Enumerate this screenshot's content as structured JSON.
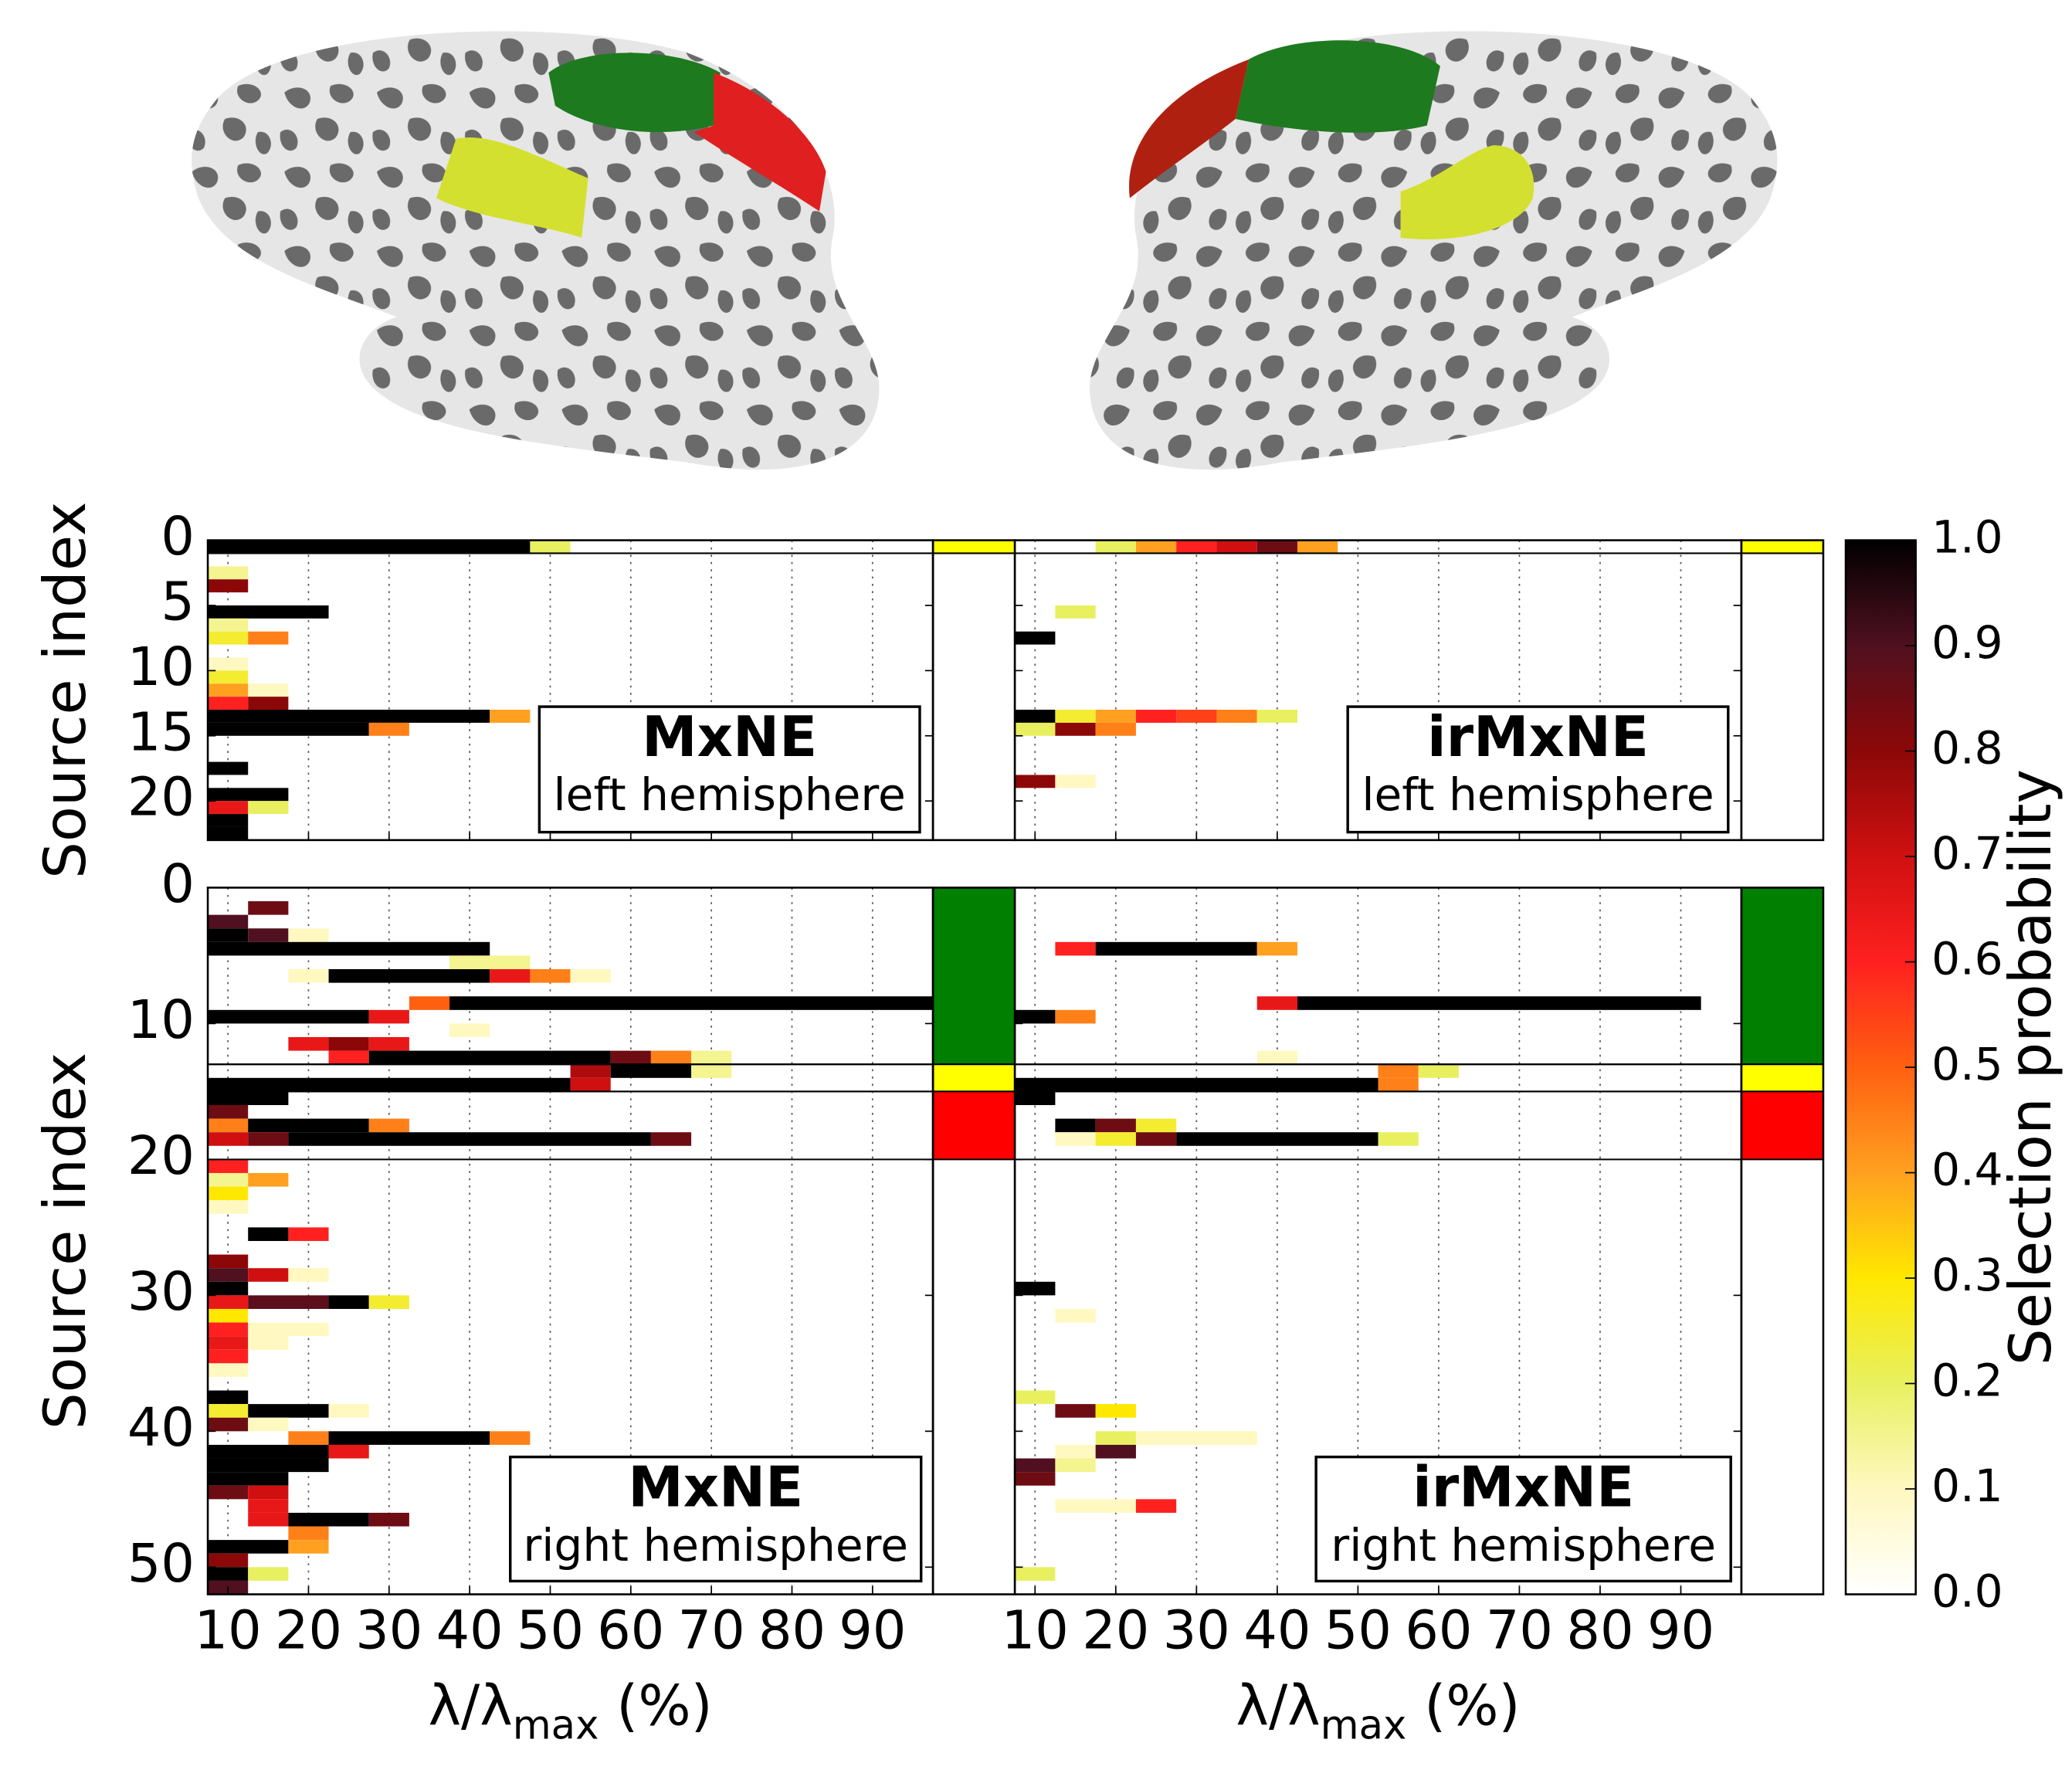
{
  "chart_data": [
    {
      "type": "heatmap",
      "title": "MxNE",
      "subtitle": "left hemisphere",
      "ylabel": "Source index",
      "xlim": [
        7.5,
        97.5
      ],
      "ylim": [
        0,
        23
      ],
      "xticks": [
        10,
        20,
        30,
        40,
        50,
        60,
        70,
        80,
        90
      ],
      "xtick_labels": false,
      "yticks": [
        0,
        5,
        10,
        15,
        20
      ],
      "ytick_labels": true,
      "grid": true,
      "roi_bands": [
        {
          "start": 0,
          "end": 1,
          "color": "#ffff00"
        }
      ],
      "cells": [
        [
          0,
          7.5,
          47.5,
          1.0
        ],
        [
          0,
          47.5,
          52.5,
          0.2
        ],
        [
          2,
          7.5,
          12.5,
          0.15
        ],
        [
          3,
          7.5,
          12.5,
          0.8
        ],
        [
          5,
          7.5,
          22.5,
          1.0
        ],
        [
          6,
          7.5,
          12.5,
          0.15
        ],
        [
          7,
          7.5,
          12.5,
          0.25
        ],
        [
          7,
          12.5,
          17.5,
          0.45
        ],
        [
          9,
          7.5,
          12.5,
          0.1
        ],
        [
          10,
          7.5,
          12.5,
          0.25
        ],
        [
          11,
          7.5,
          12.5,
          0.4
        ],
        [
          11,
          12.5,
          17.5,
          0.1
        ],
        [
          12,
          7.5,
          12.5,
          0.6
        ],
        [
          12,
          12.5,
          17.5,
          0.8
        ],
        [
          13,
          7.5,
          42.5,
          1.0
        ],
        [
          13,
          42.5,
          47.5,
          0.4
        ],
        [
          14,
          7.5,
          27.5,
          1.0
        ],
        [
          14,
          27.5,
          32.5,
          0.45
        ],
        [
          17,
          7.5,
          12.5,
          1.0
        ],
        [
          19,
          7.5,
          17.5,
          1.0
        ],
        [
          20,
          7.5,
          12.5,
          0.65
        ],
        [
          20,
          12.5,
          17.5,
          0.2
        ],
        [
          21,
          7.5,
          12.5,
          1.0
        ],
        [
          22,
          7.5,
          12.5,
          1.0
        ]
      ]
    },
    {
      "type": "heatmap",
      "title": "irMxNE",
      "subtitle": "left hemisphere",
      "xlim": [
        7.5,
        97.5
      ],
      "ylim": [
        0,
        23
      ],
      "xticks": [
        10,
        20,
        30,
        40,
        50,
        60,
        70,
        80,
        90
      ],
      "xtick_labels": false,
      "yticks": [
        0,
        5,
        10,
        15,
        20
      ],
      "ytick_labels": false,
      "grid": true,
      "roi_bands": [
        {
          "start": 0,
          "end": 1,
          "color": "#ffff00"
        }
      ],
      "cells": [
        [
          0,
          17.5,
          22.5,
          0.2
        ],
        [
          0,
          22.5,
          27.5,
          0.4
        ],
        [
          0,
          27.5,
          32.5,
          0.6
        ],
        [
          0,
          32.5,
          37.5,
          0.7
        ],
        [
          0,
          37.5,
          42.5,
          0.85
        ],
        [
          0,
          42.5,
          47.5,
          0.4
        ],
        [
          5,
          12.5,
          17.5,
          0.2
        ],
        [
          7,
          7.5,
          12.5,
          1.0
        ],
        [
          13,
          7.5,
          12.5,
          1.0
        ],
        [
          13,
          12.5,
          17.5,
          0.25
        ],
        [
          13,
          17.5,
          22.5,
          0.4
        ],
        [
          13,
          22.5,
          27.5,
          0.6
        ],
        [
          13,
          27.5,
          32.5,
          0.55
        ],
        [
          13,
          32.5,
          37.5,
          0.45
        ],
        [
          13,
          37.5,
          42.5,
          0.2
        ],
        [
          14,
          7.5,
          12.5,
          0.2
        ],
        [
          14,
          12.5,
          17.5,
          0.8
        ],
        [
          14,
          17.5,
          22.5,
          0.45
        ],
        [
          18,
          7.5,
          12.5,
          0.8
        ],
        [
          18,
          12.5,
          17.5,
          0.1
        ]
      ]
    },
    {
      "type": "heatmap",
      "title": "MxNE",
      "subtitle": "right hemisphere",
      "ylabel": "Source index",
      "xlabel": [
        "λ/λ",
        "max",
        " (%)"
      ],
      "xlim": [
        7.5,
        97.5
      ],
      "ylim": [
        0,
        52
      ],
      "xticks": [
        10,
        20,
        30,
        40,
        50,
        60,
        70,
        80,
        90
      ],
      "xtick_labels": true,
      "yticks": [
        0,
        10,
        20,
        30,
        40,
        50
      ],
      "ytick_labels": true,
      "grid": true,
      "roi_bands": [
        {
          "start": 0,
          "end": 13,
          "color": "#007f00"
        },
        {
          "start": 13,
          "end": 15,
          "color": "#ffff00"
        },
        {
          "start": 15,
          "end": 20,
          "color": "#ff0000"
        }
      ],
      "cells": [
        [
          1,
          12.5,
          17.5,
          0.85
        ],
        [
          2,
          7.5,
          12.5,
          0.9
        ],
        [
          3,
          7.5,
          12.5,
          1.0
        ],
        [
          3,
          12.5,
          17.5,
          0.9
        ],
        [
          3,
          17.5,
          22.5,
          0.1
        ],
        [
          4,
          7.5,
          42.5,
          1.0
        ],
        [
          5,
          37.5,
          47.5,
          0.15
        ],
        [
          6,
          17.5,
          22.5,
          0.1
        ],
        [
          6,
          22.5,
          42.5,
          1.0
        ],
        [
          6,
          42.5,
          47.5,
          0.65
        ],
        [
          6,
          47.5,
          52.5,
          0.45
        ],
        [
          6,
          52.5,
          57.5,
          0.1
        ],
        [
          8,
          32.5,
          37.5,
          0.5
        ],
        [
          8,
          37.5,
          97.5,
          1.0
        ],
        [
          9,
          7.5,
          27.5,
          1.0
        ],
        [
          9,
          27.5,
          32.5,
          0.65
        ],
        [
          10,
          37.5,
          42.5,
          0.1
        ],
        [
          11,
          17.5,
          22.5,
          0.65
        ],
        [
          11,
          22.5,
          27.5,
          0.8
        ],
        [
          11,
          27.5,
          32.5,
          0.65
        ],
        [
          12,
          22.5,
          27.5,
          0.6
        ],
        [
          12,
          27.5,
          57.5,
          1.0
        ],
        [
          12,
          57.5,
          62.5,
          0.85
        ],
        [
          12,
          62.5,
          67.5,
          0.45
        ],
        [
          12,
          67.5,
          72.5,
          0.15
        ],
        [
          13,
          52.5,
          57.5,
          0.75
        ],
        [
          13,
          57.5,
          67.5,
          1.0
        ],
        [
          13,
          67.5,
          72.5,
          0.15
        ],
        [
          14,
          7.5,
          52.5,
          1.0
        ],
        [
          14,
          52.5,
          57.5,
          0.7
        ],
        [
          15,
          7.5,
          17.5,
          1.0
        ],
        [
          16,
          7.5,
          12.5,
          0.85
        ],
        [
          17,
          7.5,
          12.5,
          0.45
        ],
        [
          17,
          12.5,
          27.5,
          1.0
        ],
        [
          17,
          27.5,
          32.5,
          0.45
        ],
        [
          18,
          7.5,
          12.5,
          0.7
        ],
        [
          18,
          12.5,
          17.5,
          0.85
        ],
        [
          18,
          17.5,
          62.5,
          1.0
        ],
        [
          18,
          62.5,
          67.5,
          0.85
        ],
        [
          20,
          7.5,
          12.5,
          0.6
        ],
        [
          21,
          7.5,
          12.5,
          0.15
        ],
        [
          21,
          12.5,
          17.5,
          0.4
        ],
        [
          22,
          7.5,
          12.5,
          0.3
        ],
        [
          23,
          7.5,
          12.5,
          0.1
        ],
        [
          25,
          12.5,
          17.5,
          1.0
        ],
        [
          25,
          17.5,
          22.5,
          0.6
        ],
        [
          27,
          7.5,
          12.5,
          0.8
        ],
        [
          28,
          7.5,
          12.5,
          0.9
        ],
        [
          28,
          12.5,
          17.5,
          0.7
        ],
        [
          28,
          17.5,
          22.5,
          0.1
        ],
        [
          29,
          7.5,
          12.5,
          1.0
        ],
        [
          30,
          7.5,
          12.5,
          0.65
        ],
        [
          30,
          12.5,
          22.5,
          0.88
        ],
        [
          30,
          22.5,
          27.5,
          1.0
        ],
        [
          30,
          27.5,
          32.5,
          0.25
        ],
        [
          31,
          7.5,
          12.5,
          0.3
        ],
        [
          32,
          7.5,
          12.5,
          0.6
        ],
        [
          32,
          12.5,
          22.5,
          0.1
        ],
        [
          33,
          7.5,
          12.5,
          0.65
        ],
        [
          33,
          12.5,
          17.5,
          0.1
        ],
        [
          34,
          7.5,
          12.5,
          0.6
        ],
        [
          35,
          7.5,
          12.5,
          0.1
        ],
        [
          37,
          7.5,
          12.5,
          1.0
        ],
        [
          38,
          7.5,
          12.5,
          0.25
        ],
        [
          38,
          12.5,
          22.5,
          1.0
        ],
        [
          38,
          22.5,
          27.5,
          0.1
        ],
        [
          39,
          7.5,
          12.5,
          0.85
        ],
        [
          39,
          12.5,
          17.5,
          0.1
        ],
        [
          40,
          17.5,
          22.5,
          0.45
        ],
        [
          40,
          22.5,
          42.5,
          1.0
        ],
        [
          40,
          42.5,
          47.5,
          0.45
        ],
        [
          41,
          7.5,
          22.5,
          1.0
        ],
        [
          41,
          22.5,
          27.5,
          0.65
        ],
        [
          42,
          7.5,
          22.5,
          1.0
        ],
        [
          43,
          7.5,
          17.5,
          1.0
        ],
        [
          44,
          7.5,
          12.5,
          0.85
        ],
        [
          44,
          12.5,
          17.5,
          0.7
        ],
        [
          45,
          12.5,
          17.5,
          0.65
        ],
        [
          46,
          12.5,
          17.5,
          0.65
        ],
        [
          46,
          17.5,
          27.5,
          1.0
        ],
        [
          46,
          27.5,
          32.5,
          0.85
        ],
        [
          47,
          17.5,
          22.5,
          0.45
        ],
        [
          48,
          7.5,
          17.5,
          1.0
        ],
        [
          48,
          17.5,
          22.5,
          0.4
        ],
        [
          49,
          7.5,
          12.5,
          0.8
        ],
        [
          50,
          7.5,
          12.5,
          1.0
        ],
        [
          50,
          12.5,
          17.5,
          0.2
        ],
        [
          51,
          7.5,
          12.5,
          0.9
        ]
      ]
    },
    {
      "type": "heatmap",
      "title": "irMxNE",
      "subtitle": "right hemisphere",
      "xlabel": [
        "λ/λ",
        "max",
        " (%)"
      ],
      "xlim": [
        7.5,
        97.5
      ],
      "ylim": [
        0,
        52
      ],
      "xticks": [
        10,
        20,
        30,
        40,
        50,
        60,
        70,
        80,
        90
      ],
      "xtick_labels": true,
      "yticks": [
        0,
        10,
        20,
        30,
        40,
        50
      ],
      "ytick_labels": false,
      "grid": true,
      "roi_bands": [
        {
          "start": 0,
          "end": 13,
          "color": "#007f00"
        },
        {
          "start": 13,
          "end": 15,
          "color": "#ffff00"
        },
        {
          "start": 15,
          "end": 20,
          "color": "#ff0000"
        }
      ],
      "cells": [
        [
          4,
          12.5,
          17.5,
          0.6
        ],
        [
          4,
          17.5,
          37.5,
          1.0
        ],
        [
          4,
          37.5,
          42.5,
          0.4
        ],
        [
          8,
          37.5,
          42.5,
          0.65
        ],
        [
          8,
          42.5,
          92.5,
          1.0
        ],
        [
          9,
          7.5,
          12.5,
          1.0
        ],
        [
          9,
          12.5,
          17.5,
          0.45
        ],
        [
          12,
          37.5,
          42.5,
          0.1
        ],
        [
          13,
          52.5,
          57.5,
          0.45
        ],
        [
          13,
          57.5,
          62.5,
          0.2
        ],
        [
          14,
          7.5,
          52.5,
          1.0
        ],
        [
          14,
          52.5,
          57.5,
          0.45
        ],
        [
          15,
          7.5,
          12.5,
          1.0
        ],
        [
          17,
          12.5,
          17.5,
          1.0
        ],
        [
          17,
          17.5,
          22.5,
          0.85
        ],
        [
          17,
          22.5,
          27.5,
          0.25
        ],
        [
          18,
          12.5,
          17.5,
          0.1
        ],
        [
          18,
          17.5,
          22.5,
          0.25
        ],
        [
          18,
          22.5,
          27.5,
          0.85
        ],
        [
          18,
          27.5,
          52.5,
          1.0
        ],
        [
          18,
          52.5,
          57.5,
          0.2
        ],
        [
          29,
          7.5,
          12.5,
          1.0
        ],
        [
          31,
          12.5,
          17.5,
          0.1
        ],
        [
          37,
          7.5,
          12.5,
          0.2
        ],
        [
          38,
          12.5,
          17.5,
          0.85
        ],
        [
          38,
          17.5,
          22.5,
          0.3
        ],
        [
          40,
          17.5,
          22.5,
          0.2
        ],
        [
          40,
          22.5,
          37.5,
          0.1
        ],
        [
          41,
          12.5,
          17.5,
          0.1
        ],
        [
          41,
          17.5,
          22.5,
          0.9
        ],
        [
          42,
          7.5,
          12.5,
          0.9
        ],
        [
          42,
          12.5,
          17.5,
          0.15
        ],
        [
          43,
          7.5,
          12.5,
          0.85
        ],
        [
          45,
          12.5,
          22.5,
          0.1
        ],
        [
          45,
          22.5,
          27.5,
          0.6
        ],
        [
          50,
          7.5,
          12.5,
          0.2
        ]
      ]
    },
    {
      "type": "colorbar",
      "label": "Selection probability",
      "lim": [
        0,
        1
      ],
      "ticks": [
        {
          "value": 0,
          "label": "0.0"
        },
        0.1,
        0.2,
        0.3,
        0.4,
        0.5,
        0.6,
        0.7,
        0.8,
        0.9,
        {
          "value": 1,
          "label": "1.0"
        }
      ],
      "colormap": [
        "#ffffff",
        "#fff8c0",
        "#e8f060",
        "#ffe800",
        "#ffa020",
        "#ff6010",
        "#ff2020",
        "#d01010",
        "#8c0808",
        "#501020",
        "#000000"
      ]
    }
  ]
}
